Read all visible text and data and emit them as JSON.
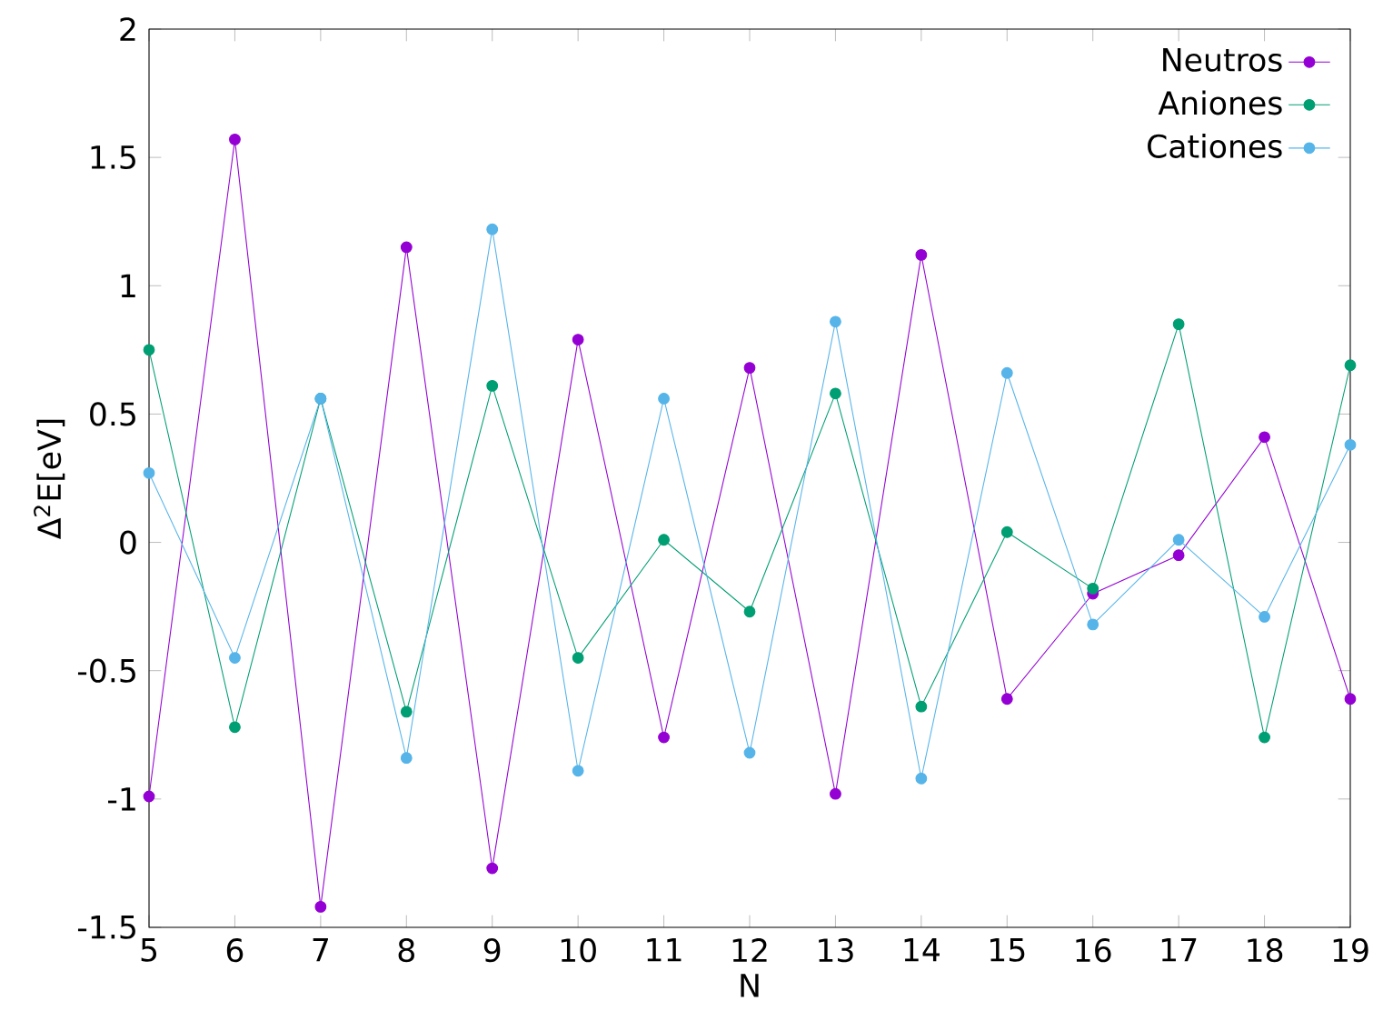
{
  "chart_data": {
    "type": "line",
    "xlabel": "N",
    "ylabel": "Δ$^{2}$E[eV]",
    "x": [
      5,
      6,
      7,
      8,
      9,
      10,
      11,
      12,
      13,
      14,
      15,
      16,
      17,
      18,
      19
    ],
    "series": [
      {
        "name": "Neutros",
        "color": "#9400d3",
        "values": [
          -0.99,
          1.57,
          -1.42,
          1.15,
          -1.27,
          0.79,
          -0.76,
          0.68,
          -0.98,
          1.12,
          -0.61,
          -0.2,
          -0.05,
          0.41,
          -0.61
        ]
      },
      {
        "name": "Aniones",
        "color": "#009e73",
        "values": [
          0.75,
          -0.72,
          0.56,
          -0.66,
          0.61,
          -0.45,
          0.01,
          -0.27,
          0.58,
          -0.64,
          0.04,
          -0.18,
          0.85,
          -0.76,
          0.69
        ]
      },
      {
        "name": "Cationes",
        "color": "#56b4e9",
        "values": [
          0.27,
          -0.45,
          0.56,
          -0.84,
          1.22,
          -0.89,
          0.56,
          -0.82,
          0.86,
          -0.92,
          0.66,
          -0.32,
          0.01,
          -0.29,
          0.38
        ]
      }
    ],
    "xlim": [
      5,
      19
    ],
    "ylim": [
      -1.5,
      2
    ],
    "xticks": [
      5,
      6,
      7,
      8,
      9,
      10,
      11,
      12,
      13,
      14,
      15,
      16,
      17,
      18,
      19
    ],
    "yticks": [
      -1.5,
      -1,
      -0.5,
      0,
      0.5,
      1,
      1.5,
      2
    ],
    "legend": "top right",
    "marker": "circle",
    "line_style": "solid",
    "grid": false
  }
}
